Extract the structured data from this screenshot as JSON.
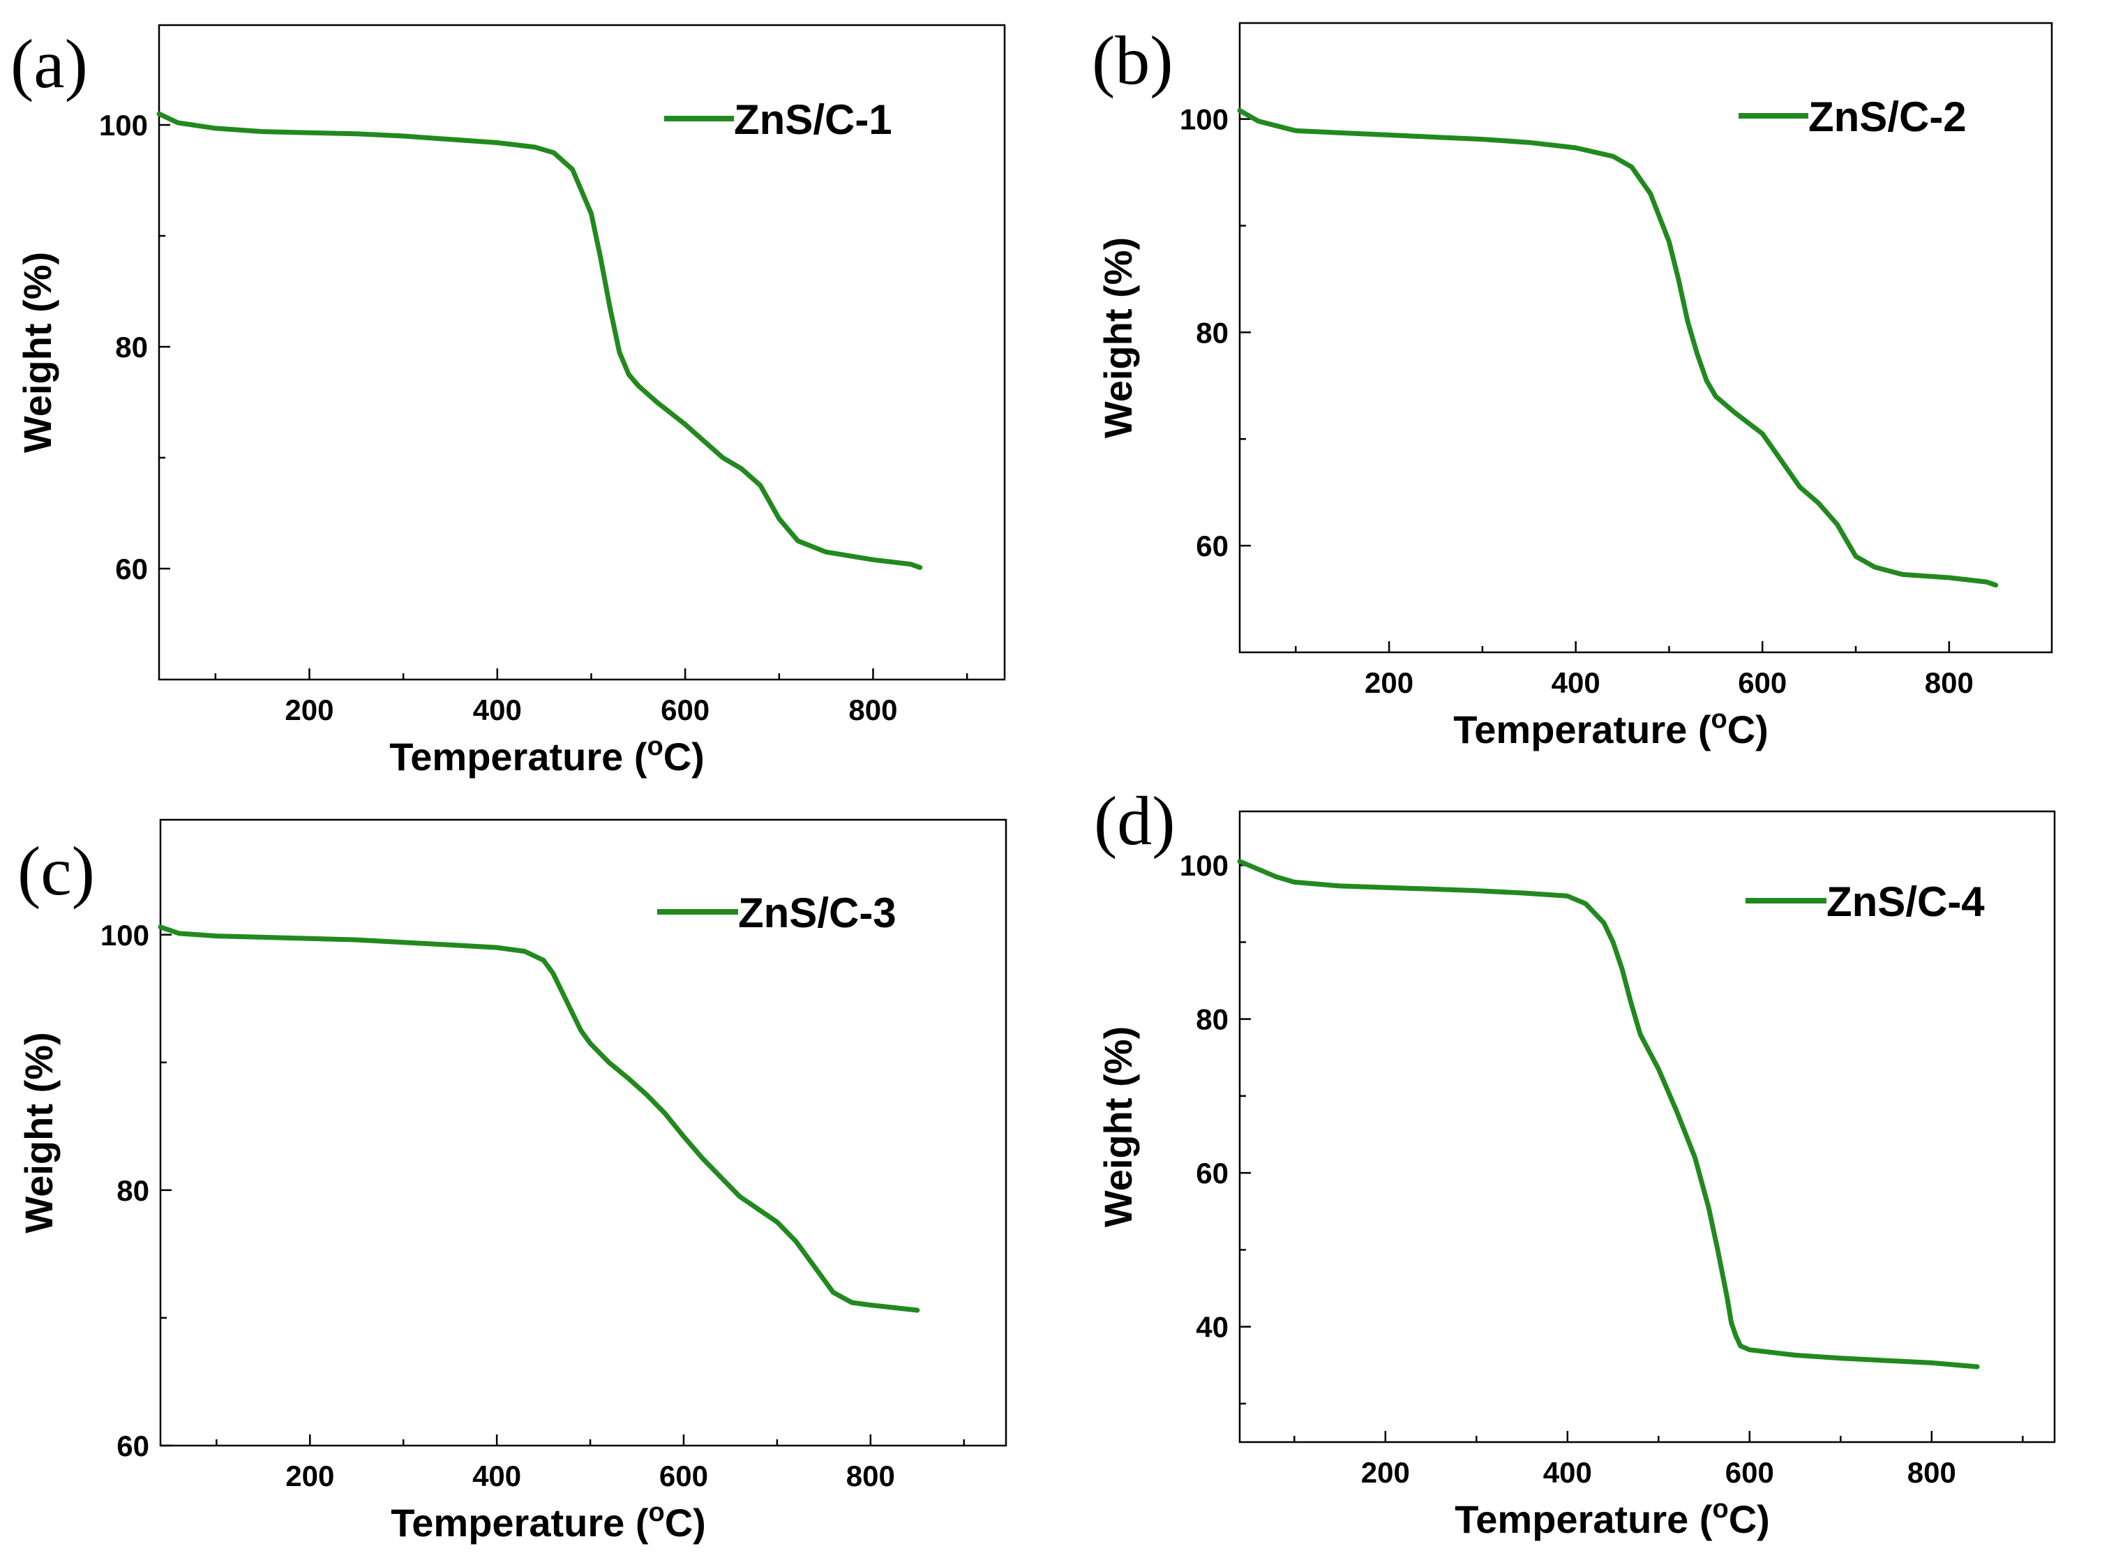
{
  "colors": {
    "series": "#22891e",
    "axis": "#000000"
  },
  "chart_data": [
    {
      "type": "line",
      "panel_label": "(a)",
      "xlabel": "Temperature (",
      "xlabel_sup": "o",
      "xlabel_end": "C)",
      "ylabel": "Weight (%)",
      "xlim": [
        40,
        940
      ],
      "ylim": [
        50,
        109
      ],
      "x_ticks": [
        200,
        400,
        600,
        800
      ],
      "x_minor_ticks": [
        100,
        300,
        500,
        700,
        900
      ],
      "y_ticks": [
        60,
        80,
        100
      ],
      "y_minor_ticks": [
        70,
        90
      ],
      "legend_position": "top-right",
      "series": [
        {
          "name": "ZnS/C-1",
          "x": [
            40,
            60,
            100,
            150,
            200,
            250,
            300,
            350,
            400,
            440,
            460,
            480,
            500,
            510,
            520,
            530,
            540,
            550,
            570,
            600,
            620,
            640,
            660,
            680,
            700,
            720,
            750,
            800,
            840,
            850
          ],
          "y": [
            101,
            100.2,
            99.7,
            99.4,
            99.3,
            99.2,
            99.0,
            98.7,
            98.4,
            98.0,
            97.5,
            96.0,
            92.0,
            88.0,
            83.5,
            79.5,
            77.5,
            76.5,
            75.0,
            73.0,
            71.5,
            70.0,
            69.0,
            67.5,
            64.5,
            62.5,
            61.5,
            60.8,
            60.4,
            60.1
          ]
        }
      ]
    },
    {
      "type": "line",
      "panel_label": "(b)",
      "xlabel": "Temperature (",
      "xlabel_sup": "o",
      "xlabel_end": "C)",
      "ylabel": "Weight (%)",
      "xlim": [
        40,
        910
      ],
      "ylim": [
        50,
        109
      ],
      "x_ticks": [
        200,
        400,
        600,
        800
      ],
      "x_minor_ticks": [
        100,
        300,
        500,
        700
      ],
      "y_ticks": [
        60,
        80,
        100
      ],
      "y_minor_ticks": [
        70,
        90
      ],
      "legend_position": "top-right",
      "series": [
        {
          "name": "ZnS/C-2",
          "x": [
            40,
            60,
            100,
            150,
            200,
            250,
            300,
            350,
            400,
            440,
            460,
            480,
            500,
            510,
            520,
            530,
            540,
            550,
            570,
            600,
            620,
            640,
            660,
            680,
            700,
            720,
            750,
            800,
            840,
            850
          ],
          "y": [
            100.8,
            99.8,
            98.9,
            98.7,
            98.5,
            98.3,
            98.1,
            97.8,
            97.3,
            96.5,
            95.5,
            93.0,
            88.5,
            85.0,
            81.0,
            78.0,
            75.5,
            74.0,
            72.5,
            70.5,
            68.0,
            65.5,
            64.0,
            62.0,
            59.0,
            58.0,
            57.3,
            57.0,
            56.6,
            56.3
          ]
        }
      ]
    },
    {
      "type": "line",
      "panel_label": "(c)",
      "xlabel": "Temperature (",
      "xlabel_sup": "o",
      "xlabel_end": "C)",
      "ylabel": "Weight (%)",
      "xlim": [
        40,
        945
      ],
      "ylim": [
        60,
        109
      ],
      "x_ticks": [
        200,
        400,
        600,
        800
      ],
      "x_minor_ticks": [
        100,
        300,
        500,
        700,
        900
      ],
      "y_ticks": [
        60,
        80,
        100
      ],
      "y_minor_ticks": [
        70,
        90
      ],
      "legend_position": "top-right",
      "series": [
        {
          "name": "ZnS/C-3",
          "x": [
            40,
            60,
            100,
            150,
            200,
            250,
            300,
            350,
            400,
            430,
            450,
            460,
            470,
            480,
            490,
            500,
            520,
            540,
            560,
            580,
            600,
            620,
            640,
            660,
            680,
            700,
            720,
            740,
            760,
            780,
            800,
            850
          ],
          "y": [
            100.6,
            100.1,
            99.9,
            99.8,
            99.7,
            99.6,
            99.4,
            99.2,
            99.0,
            98.7,
            98.0,
            97.0,
            95.5,
            94.0,
            92.5,
            91.5,
            90.0,
            88.8,
            87.5,
            86.0,
            84.2,
            82.5,
            81.0,
            79.5,
            78.5,
            77.5,
            76.0,
            74.0,
            72.0,
            71.2,
            71.0,
            70.6
          ]
        }
      ]
    },
    {
      "type": "line",
      "panel_label": "(d)",
      "xlabel": "Temperature (",
      "xlabel_sup": "o",
      "xlabel_end": "C)",
      "ylabel": "Weight (%)",
      "xlim": [
        40,
        935
      ],
      "ylim": [
        25,
        107
      ],
      "x_ticks": [
        200,
        400,
        600,
        800
      ],
      "x_minor_ticks": [
        100,
        300,
        500,
        700,
        900
      ],
      "y_ticks": [
        40,
        60,
        80,
        100
      ],
      "y_minor_ticks": [
        30,
        50,
        70,
        90
      ],
      "legend_position": "top-right",
      "series": [
        {
          "name": "ZnS/C-4",
          "x": [
            40,
            60,
            80,
            100,
            150,
            200,
            250,
            300,
            350,
            400,
            420,
            440,
            450,
            460,
            470,
            480,
            500,
            520,
            540,
            555,
            565,
            575,
            580,
            585,
            590,
            600,
            650,
            700,
            750,
            800,
            850
          ],
          "y": [
            100.5,
            99.5,
            98.5,
            97.8,
            97.3,
            97.1,
            96.9,
            96.7,
            96.4,
            96.0,
            95.0,
            92.5,
            90.0,
            86.5,
            82.0,
            78.0,
            73.5,
            68.0,
            62.0,
            55.5,
            50.0,
            44.0,
            40.5,
            38.8,
            37.5,
            37.0,
            36.3,
            35.9,
            35.6,
            35.3,
            34.8
          ]
        }
      ]
    }
  ]
}
